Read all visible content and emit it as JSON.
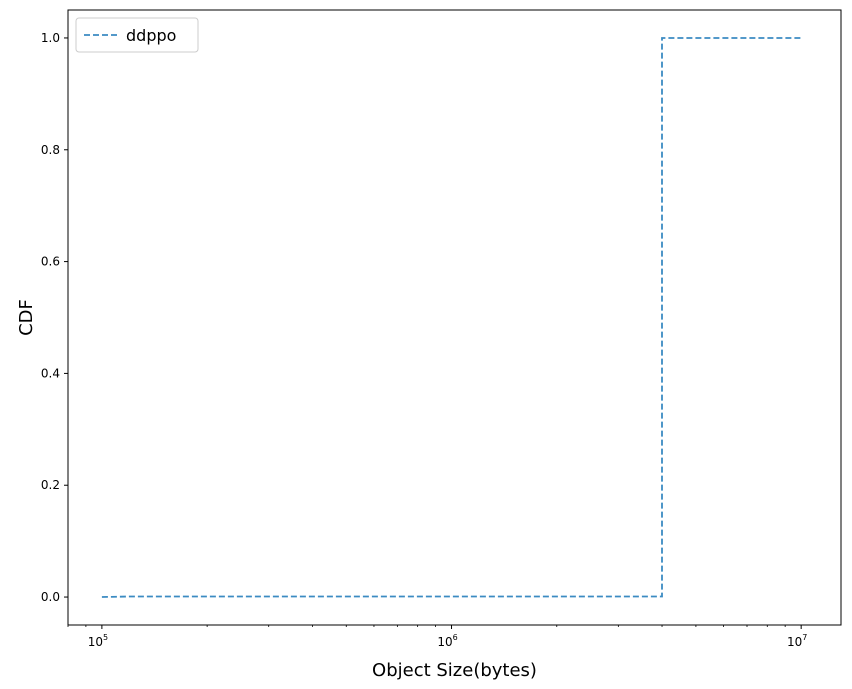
{
  "chart_data": {
    "type": "line",
    "title": "",
    "xlabel": "Object Size(bytes)",
    "ylabel": "CDF",
    "xscale": "log",
    "xlim": [
      80000,
      13000000
    ],
    "ylim": [
      -0.05,
      1.05
    ],
    "x_ticks": [
      {
        "value": 100000,
        "base": "10",
        "exp": "5"
      },
      {
        "value": 1000000,
        "base": "10",
        "exp": "6"
      },
      {
        "value": 10000000,
        "base": "10",
        "exp": "7"
      }
    ],
    "y_ticks": [
      {
        "value": 0.0,
        "label": "0.0"
      },
      {
        "value": 0.2,
        "label": "0.2"
      },
      {
        "value": 0.4,
        "label": "0.4"
      },
      {
        "value": 0.6,
        "label": "0.6"
      },
      {
        "value": 0.8,
        "label": "0.8"
      },
      {
        "value": 1.0,
        "label": "1.0"
      }
    ],
    "grid": false,
    "legend": {
      "position": "top-left",
      "entries": [
        "ddppo"
      ]
    },
    "series": [
      {
        "name": "ddppo",
        "color": "#3b8bc2",
        "linestyle": "dashed",
        "drawstyle": "steps-post",
        "x": [
          100000,
          120000,
          4000000,
          4000000,
          10000000
        ],
        "y": [
          0.0,
          0.001,
          0.001,
          1.0,
          1.0
        ]
      }
    ]
  }
}
